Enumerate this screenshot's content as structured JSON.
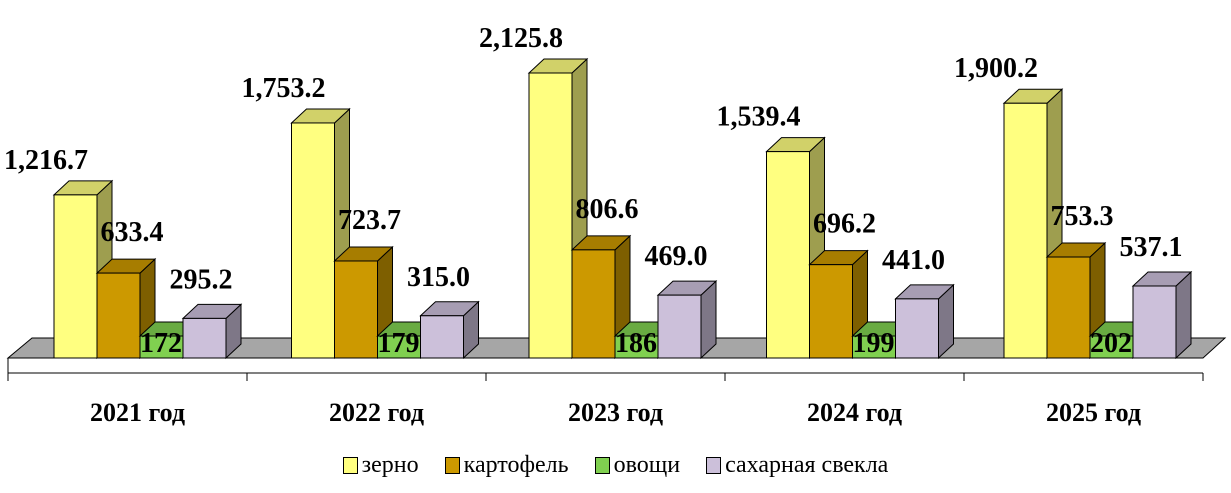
{
  "chart_data": {
    "type": "bar",
    "categories": [
      "2021 год",
      "2022 год",
      "2023 год",
      "2024 год",
      "2025 год"
    ],
    "series": [
      {
        "name": "зерно",
        "values": [
          1216.7,
          1753.2,
          2125.8,
          1539.4,
          1900.2
        ],
        "labels": [
          "1,216.7",
          "1,753.2",
          "2,125.8",
          "1,539.4",
          "1,900.2"
        ],
        "color": "#ffff80"
      },
      {
        "name": "картофель",
        "values": [
          633.4,
          723.7,
          806.6,
          696.2,
          753.3
        ],
        "labels": [
          "633.4",
          "723.7",
          "806.6",
          "696.2",
          "753.3"
        ],
        "color": "#cc9900"
      },
      {
        "name": "овощи",
        "values": [
          172,
          179,
          186,
          199,
          202
        ],
        "labels": [
          "172",
          "179",
          "186",
          "199",
          "202"
        ],
        "color": "#80d050"
      },
      {
        "name": "сахарная свекла",
        "values": [
          295.2,
          315.0,
          469.0,
          441.0,
          537.1
        ],
        "labels": [
          "295.2",
          "315.0",
          "469.0",
          "441.0",
          "537.1"
        ],
        "color": "#ccc0da"
      }
    ],
    "grid": false,
    "legend": "bottom",
    "three_d": true
  }
}
